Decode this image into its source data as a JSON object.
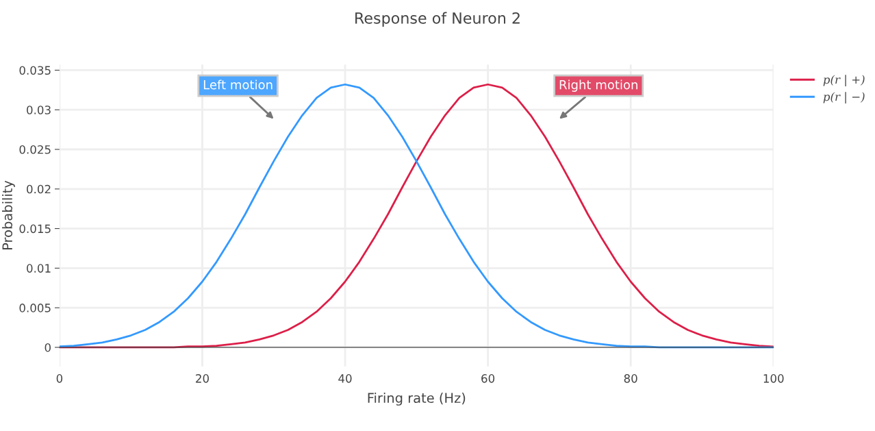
{
  "chart_data": {
    "type": "line",
    "title": "Response of Neuron 2",
    "xlabel": "Firing rate (Hz)",
    "ylabel": "Probability",
    "x": [
      0,
      2,
      4,
      6,
      8,
      10,
      12,
      14,
      16,
      18,
      20,
      22,
      24,
      26,
      28,
      30,
      32,
      34,
      36,
      38,
      40,
      42,
      44,
      46,
      48,
      50,
      52,
      54,
      56,
      58,
      60,
      62,
      64,
      66,
      68,
      70,
      72,
      74,
      76,
      78,
      80,
      82,
      84,
      86,
      88,
      90,
      92,
      94,
      96,
      98,
      100
    ],
    "series": [
      {
        "name": "p(r | +)",
        "color": "#dc1f48",
        "values": [
          0,
          0,
          0,
          0,
          0,
          0,
          0,
          0,
          0,
          0.0001,
          0.0001,
          0.0002,
          0.0004,
          0.0006,
          0.001,
          0.0015,
          0.0022,
          0.0032,
          0.0045,
          0.0062,
          0.0083,
          0.0108,
          0.0137,
          0.0168,
          0.0202,
          0.0235,
          0.0266,
          0.0293,
          0.0315,
          0.0328,
          0.0332,
          0.0328,
          0.0315,
          0.0293,
          0.0266,
          0.0235,
          0.0202,
          0.0168,
          0.0137,
          0.0108,
          0.0083,
          0.0062,
          0.0045,
          0.0032,
          0.0022,
          0.0015,
          0.001,
          0.0006,
          0.0004,
          0.0002,
          0.0001
        ]
      },
      {
        "name": "p(r | −)",
        "color": "#3399ff",
        "values": [
          0.0001,
          0.0002,
          0.0004,
          0.0006,
          0.001,
          0.0015,
          0.0022,
          0.0032,
          0.0045,
          0.0062,
          0.0083,
          0.0108,
          0.0137,
          0.0168,
          0.0202,
          0.0235,
          0.0266,
          0.0293,
          0.0315,
          0.0328,
          0.0332,
          0.0328,
          0.0315,
          0.0293,
          0.0266,
          0.0235,
          0.0202,
          0.0168,
          0.0137,
          0.0108,
          0.0083,
          0.0062,
          0.0045,
          0.0032,
          0.0022,
          0.0015,
          0.001,
          0.0006,
          0.0004,
          0.0002,
          0.0001,
          0.0001,
          0,
          0,
          0,
          0,
          0,
          0,
          0,
          0,
          0
        ]
      }
    ],
    "annotations": [
      "Left motion",
      "Right motion"
    ],
    "xlim": [
      0,
      100
    ],
    "xticks": [
      0,
      20,
      40,
      60,
      80,
      100
    ],
    "ylim": [
      -0.0024,
      0.0357
    ],
    "yticks": [
      0,
      0.005,
      0.01,
      0.015,
      0.02,
      0.025,
      0.03,
      0.035
    ],
    "grid": true,
    "legend": "top right",
    "marker": "none",
    "line_style": "solid"
  }
}
